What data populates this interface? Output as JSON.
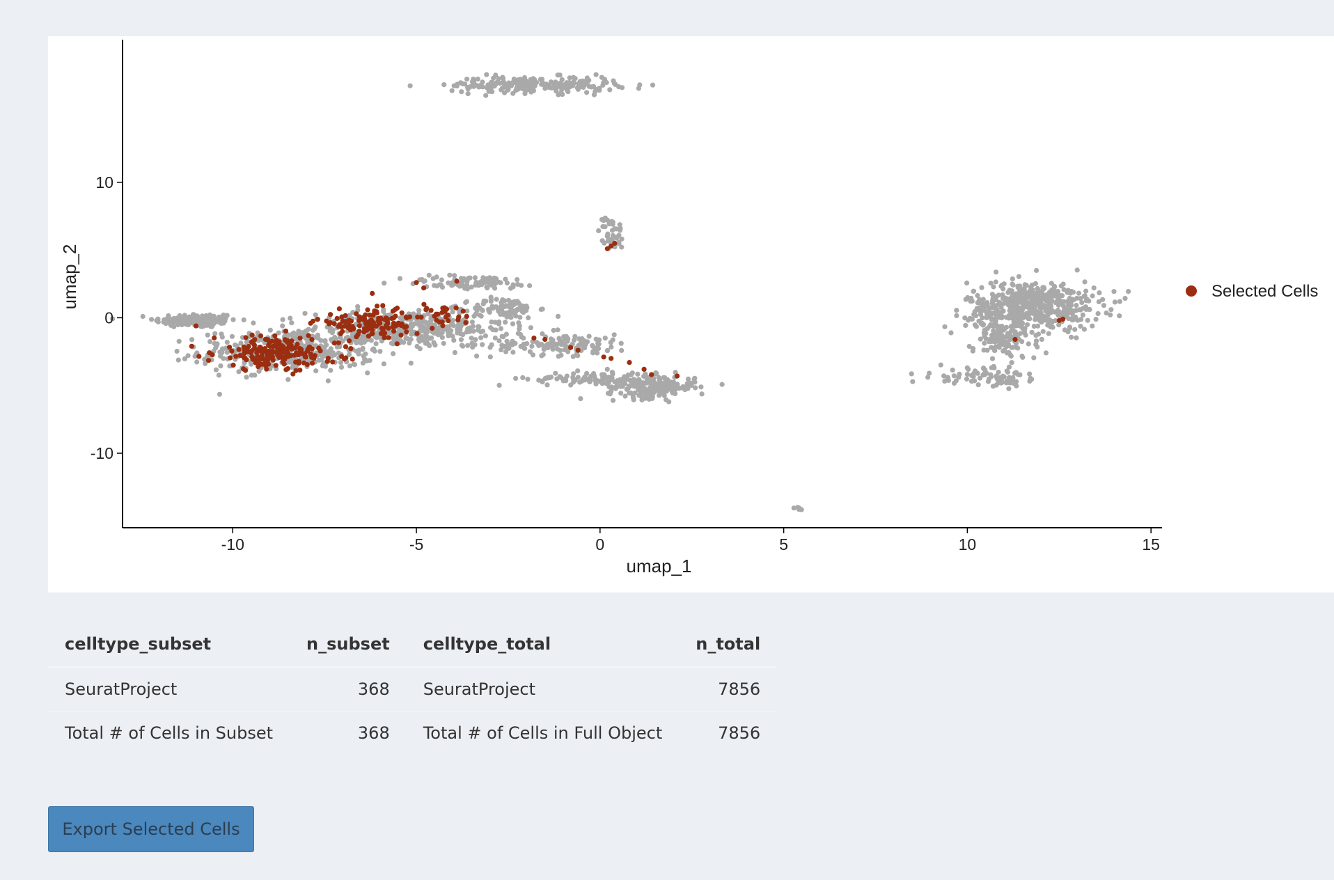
{
  "export_button": {
    "label": "Export Selected Cells"
  },
  "summary_table": {
    "headers": [
      "celltype_subset",
      "n_subset",
      "celltype_total",
      "n_total"
    ],
    "rows": [
      [
        "SeuratProject",
        "368",
        "SeuratProject",
        "7856"
      ],
      [
        "Total # of Cells in Subset",
        "368",
        "Total # of Cells in Full Object",
        "7856"
      ]
    ]
  },
  "colors": {
    "selected": "#9b2e10",
    "unselected": "#a9a9a9",
    "page_bg": "#ecf0f5",
    "button": "#4a88be"
  },
  "chart_data": {
    "type": "scatter",
    "xlabel": "umap_1",
    "ylabel": "umap_2",
    "xlim": [
      -13,
      15.3
    ],
    "ylim": [
      -15.5,
      19.5
    ],
    "xticks": [
      "-10",
      "-5",
      "0",
      "5",
      "10",
      "15"
    ],
    "yticks": [
      "-10",
      "0",
      "10"
    ],
    "xtick_values": [
      -10,
      -5,
      0,
      5,
      10,
      15
    ],
    "ytick_values": [
      -10,
      0,
      10
    ],
    "legend": {
      "position": "right",
      "entries": [
        "Selected Cells"
      ]
    },
    "grid": false,
    "clusters_gray": [
      {
        "cx": -11,
        "cy": -0.2,
        "sx": 0.75,
        "sy": 0.35,
        "n": 160
      },
      {
        "cx": -8.5,
        "cy": -2.5,
        "sx": 1.6,
        "sy": 1.0,
        "n": 380
      },
      {
        "cx": -5.2,
        "cy": -0.8,
        "sx": 1.8,
        "sy": 0.9,
        "n": 380
      },
      {
        "cx": -2.6,
        "cy": 0.7,
        "sx": 0.6,
        "sy": 0.5,
        "n": 90
      },
      {
        "cx": -3.5,
        "cy": 2.6,
        "sx": 1.3,
        "sy": 0.35,
        "n": 80
      },
      {
        "cx": -1.0,
        "cy": -2.0,
        "sx": 1.3,
        "sy": 0.5,
        "n": 130
      },
      {
        "cx": 1.4,
        "cy": -5.1,
        "sx": 0.8,
        "sy": 0.55,
        "n": 200
      },
      {
        "cx": -0.3,
        "cy": -4.5,
        "sx": 1.1,
        "sy": 0.35,
        "n": 90
      },
      {
        "cx": -1.8,
        "cy": 17.2,
        "sx": 1.5,
        "sy": 0.4,
        "n": 230
      },
      {
        "cx": 0.3,
        "cy": 6.2,
        "sx": 0.22,
        "sy": 0.9,
        "n": 40
      },
      {
        "cx": 5.4,
        "cy": -14.1,
        "sx": 0.08,
        "sy": 0.08,
        "n": 5
      },
      {
        "cx": 11.8,
        "cy": 0.9,
        "sx": 1.2,
        "sy": 1.2,
        "n": 520
      },
      {
        "cx": 11.0,
        "cy": -1.5,
        "sx": 0.6,
        "sy": 1.1,
        "n": 140
      },
      {
        "cx": 10.1,
        "cy": -4.2,
        "sx": 0.7,
        "sy": 0.4,
        "n": 50
      },
      {
        "cx": 11.1,
        "cy": -4.6,
        "sx": 0.5,
        "sy": 0.35,
        "n": 40
      }
    ],
    "clusters_selected": [
      {
        "cx": -8.8,
        "cy": -2.6,
        "sx": 1.2,
        "sy": 0.9,
        "n": 190
      },
      {
        "cx": -6.2,
        "cy": -0.4,
        "sx": 1.1,
        "sy": 0.7,
        "n": 130
      },
      {
        "cx": -4.2,
        "cy": 0.2,
        "sx": 0.5,
        "sy": 0.4,
        "n": 20
      }
    ],
    "selected_points": [
      [
        -11.0,
        -0.6
      ],
      [
        -5.0,
        2.6
      ],
      [
        -4.8,
        2.2
      ],
      [
        -3.9,
        2.7
      ],
      [
        -6.2,
        1.8
      ],
      [
        -1.8,
        -1.5
      ],
      [
        -1.5,
        -1.6
      ],
      [
        -0.8,
        -2.2
      ],
      [
        -0.6,
        -2.4
      ],
      [
        0.1,
        -2.9
      ],
      [
        0.3,
        -3.0
      ],
      [
        0.8,
        -3.3
      ],
      [
        1.2,
        -3.8
      ],
      [
        1.4,
        -4.2
      ],
      [
        2.1,
        -4.3
      ],
      [
        0.2,
        5.1
      ],
      [
        0.3,
        5.3
      ],
      [
        0.4,
        5.5
      ],
      [
        11.3,
        -1.6
      ],
      [
        12.5,
        -0.2
      ],
      [
        12.6,
        -0.1
      ]
    ]
  }
}
